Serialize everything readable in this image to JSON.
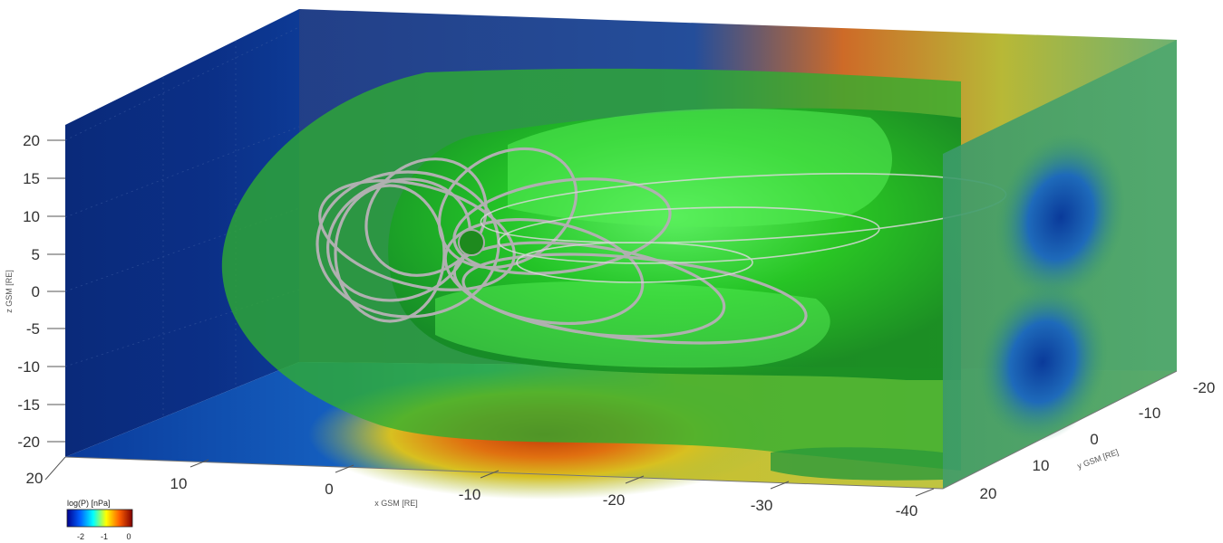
{
  "axes": {
    "z_label": "z GSM [RE]",
    "x_label": "x GSM [RE]",
    "y_label": "y GSM [RE]",
    "z_ticks": [
      "20",
      "15",
      "10",
      "5",
      "0",
      "-5",
      "-10",
      "-15",
      "-20"
    ],
    "x_ticks": [
      "20",
      "10",
      "0",
      "-10",
      "-20",
      "-30",
      "-40"
    ],
    "y_ticks": [
      "-20",
      "-10",
      "0",
      "10",
      "20"
    ]
  },
  "colorbar": {
    "title": "log(P) [nPa]",
    "ticks": [
      "-2",
      "-1",
      "0"
    ],
    "colors": [
      "#00008f",
      "#0060ff",
      "#00ffff",
      "#ffff00",
      "#ff6000",
      "#800000"
    ]
  },
  "scene": {
    "background_plane_color": "#0a2a7a",
    "isosurface_color": "#22cc22",
    "field_line_color": "#b0b0b0"
  }
}
